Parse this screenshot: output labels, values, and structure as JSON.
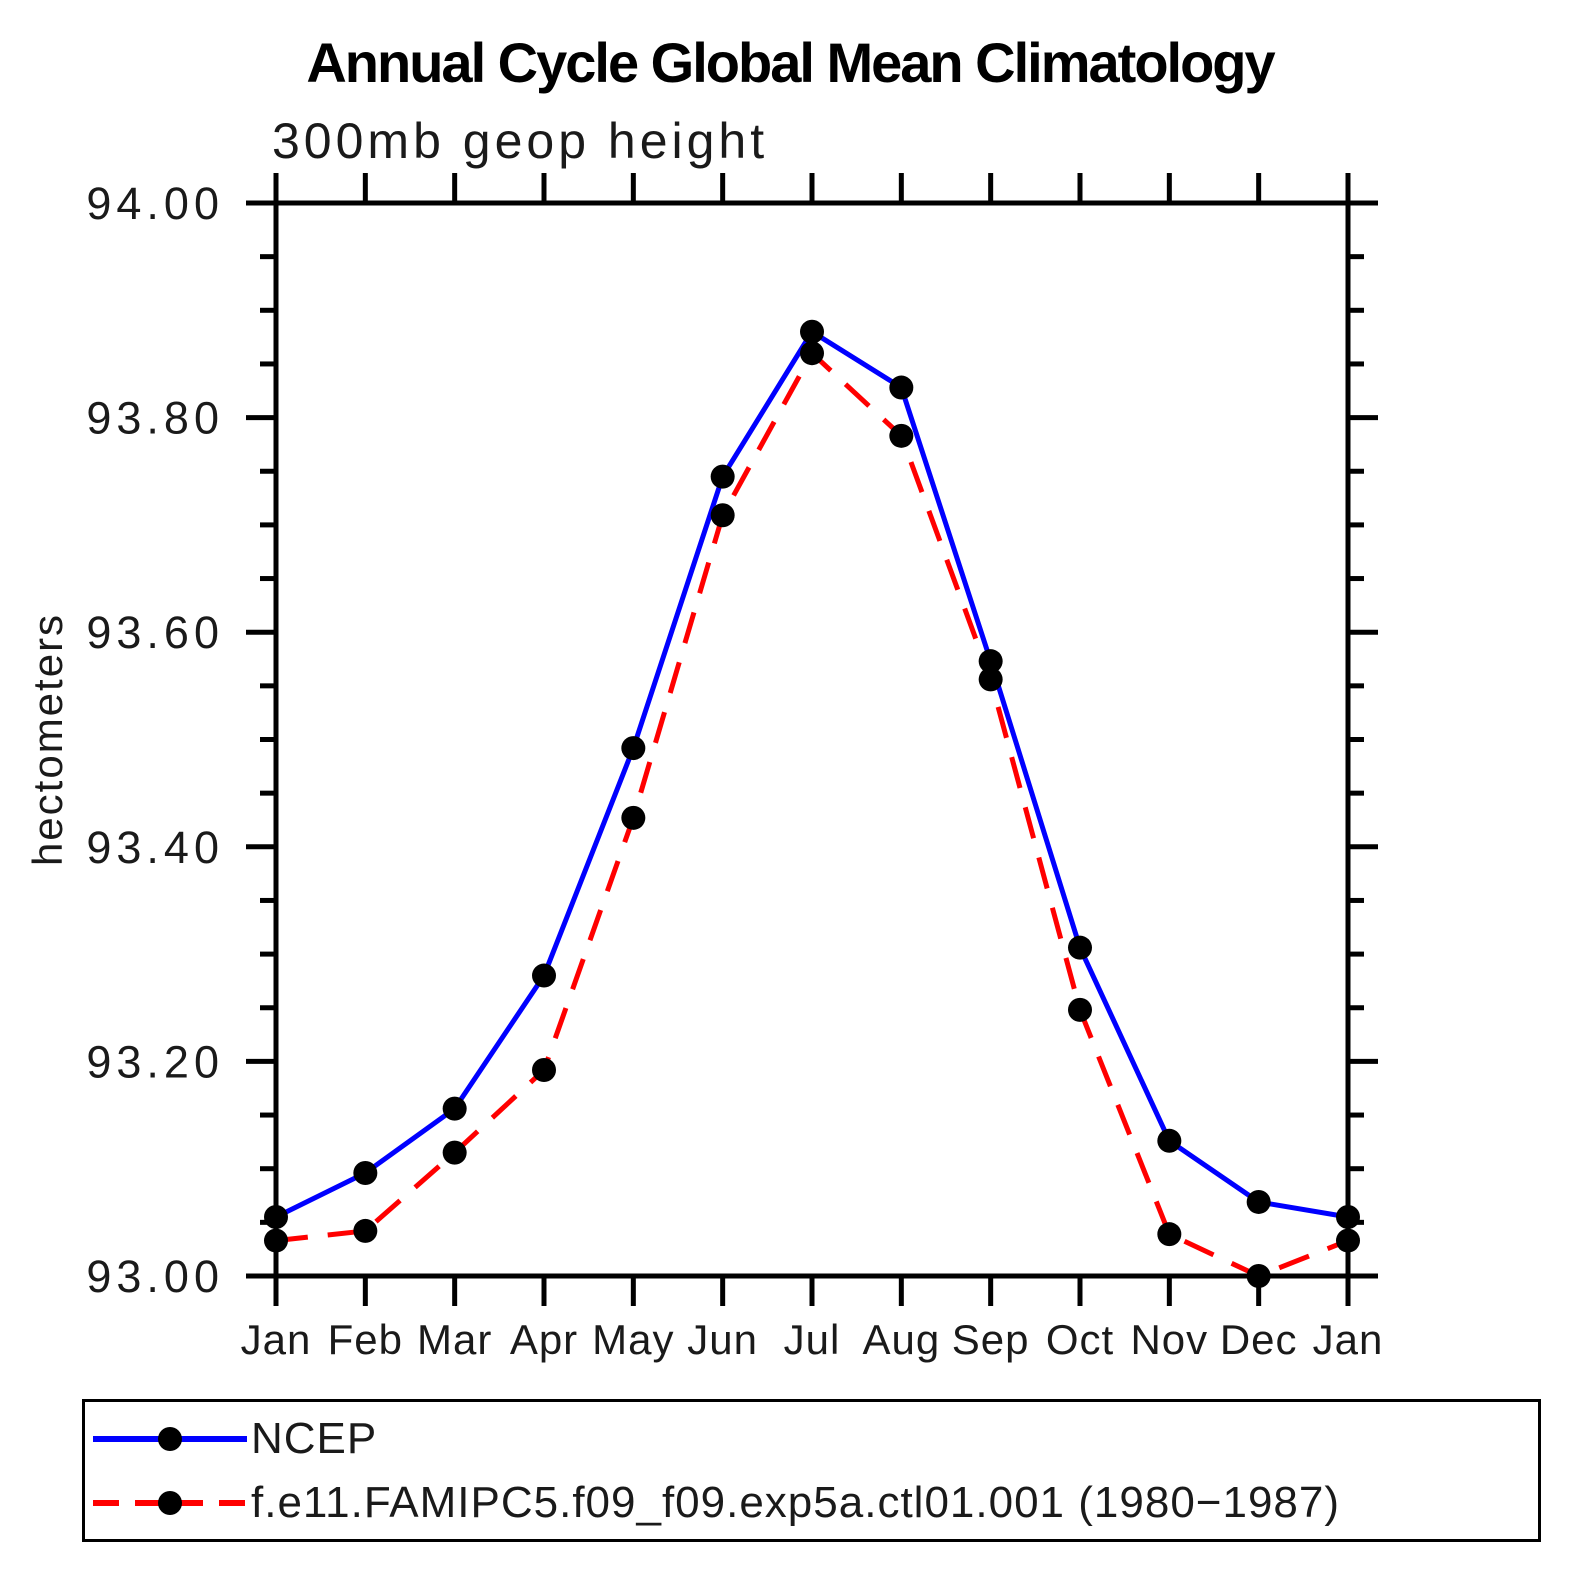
{
  "chart_data": {
    "type": "line",
    "title": "Annual Cycle Global Mean Climatology",
    "subtitle": "300mb geop height",
    "ylabel": "hectometers",
    "xlabel": "",
    "categories": [
      "Jan",
      "Feb",
      "Mar",
      "Apr",
      "May",
      "Jun",
      "Jul",
      "Aug",
      "Sep",
      "Oct",
      "Nov",
      "Dec",
      "Jan"
    ],
    "ylim": [
      93.0,
      94.0
    ],
    "ytick_labels": [
      "93.00",
      "93.20",
      "93.40",
      "93.60",
      "93.80",
      "94.00"
    ],
    "ytick_step": 0.2,
    "yminor_step": 0.05,
    "grid": false,
    "legend_position": "bottom-left-box",
    "axis_color": "#000000",
    "marker_color": "#000000",
    "series": [
      {
        "name": "NCEP",
        "color": "#0000ff",
        "line_style": "solid",
        "marker": "circle",
        "values": [
          93.055,
          93.096,
          93.156,
          93.28,
          93.492,
          93.745,
          93.88,
          93.828,
          93.573,
          93.306,
          93.126,
          93.069,
          93.055
        ]
      },
      {
        "name": "f.e11.FAMIPC5.f09_f09.exp5a.ctl01.001 (1980−1987)",
        "color": "#ff0000",
        "line_style": "dashed",
        "marker": "circle",
        "values": [
          93.033,
          93.042,
          93.115,
          93.192,
          93.427,
          93.709,
          93.86,
          93.783,
          93.556,
          93.248,
          93.039,
          93.0,
          93.033
        ]
      }
    ]
  }
}
